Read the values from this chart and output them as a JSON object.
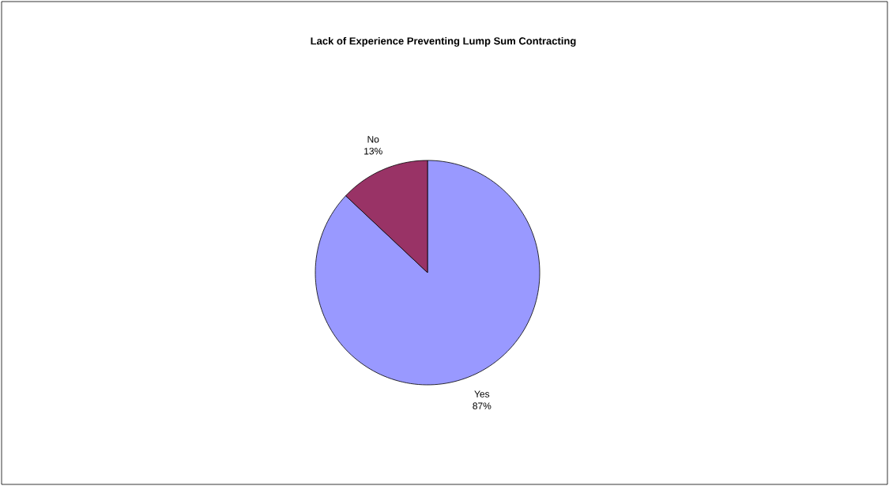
{
  "chart_data": {
    "type": "pie",
    "title": "Lack of Experience Preventing Lump Sum Contracting",
    "categories": [
      "Yes",
      "No"
    ],
    "values": [
      87,
      13
    ],
    "value_labels": [
      "87%",
      "13%"
    ],
    "colors": [
      "#9999ff",
      "#993366"
    ]
  }
}
